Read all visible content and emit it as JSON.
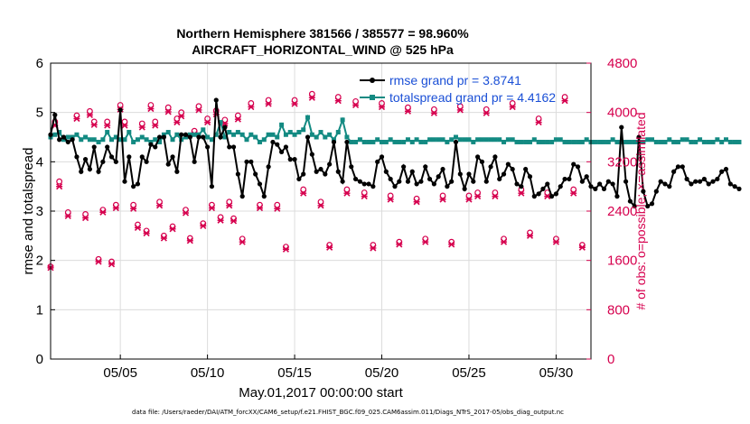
{
  "chart_data": {
    "type": "line",
    "title_line1": "Northern Hemisphere 381566 / 385577 = 98.960%",
    "title_line2": "AIRCRAFT_HORIZONTAL_WIND @ 525 hPa",
    "xlabel": "May.01,2017 00:00:00 start",
    "ylabel": "rmse and totalspread",
    "ylabel_right": "# of obs: o=possible; ×=assimilated",
    "footnote": "data file: /Users/raeder/DAI/ATM_forcXX/CAM6_setup/f.e21.FHIST_BGC.f09_025.CAM6assim.011/Diags_NTrS_2017-05/obs_diag_output.nc",
    "grid": true,
    "legend_position": "top-right",
    "xlim": [
      1,
      32
    ],
    "ylim": [
      0,
      6
    ],
    "ylim_right": [
      0,
      4800
    ],
    "x_ticks": [
      5,
      10,
      15,
      20,
      25,
      30
    ],
    "x_tick_labels": [
      "05/05",
      "05/10",
      "05/15",
      "05/20",
      "05/25",
      "05/30"
    ],
    "y_ticks": [
      0,
      1,
      2,
      3,
      4,
      5,
      6
    ],
    "y_tick_labels": [
      "0",
      "1",
      "2",
      "3",
      "4",
      "5",
      "6"
    ],
    "y_right_ticks": [
      0,
      800,
      1600,
      2400,
      3200,
      4000,
      4800
    ],
    "y_right_tick_labels": [
      "0",
      "800",
      "1600",
      "2400",
      "3200",
      "4000",
      "4800"
    ],
    "x_start": 1.0,
    "x_step": 0.25,
    "series": [
      {
        "name": "rmse grand pr = 3.8741",
        "color": "#000000",
        "values": [
          4.55,
          4.95,
          4.45,
          4.5,
          4.4,
          4.45,
          4.1,
          3.8,
          4.05,
          3.85,
          4.3,
          3.8,
          4.0,
          4.3,
          4.1,
          4.0,
          5.05,
          3.6,
          4.1,
          3.5,
          3.55,
          4.1,
          4.0,
          4.35,
          4.3,
          4.5,
          4.5,
          3.95,
          4.1,
          3.8,
          4.55,
          4.55,
          4.5,
          4.0,
          4.5,
          4.5,
          4.3,
          3.5,
          5.25,
          4.5,
          4.7,
          4.3,
          4.3,
          3.75,
          3.3,
          4.0,
          4.0,
          3.75,
          3.55,
          3.3,
          3.9,
          4.4,
          4.35,
          4.2,
          4.3,
          4.05,
          4.05,
          3.65,
          3.75,
          4.5,
          4.15,
          3.8,
          3.85,
          3.75,
          3.95,
          4.4,
          3.8,
          3.6,
          4.4,
          3.9,
          3.65,
          3.6,
          3.55,
          3.55,
          3.5,
          4.0,
          4.1,
          3.8,
          3.65,
          3.5,
          3.6,
          3.9,
          3.6,
          3.8,
          3.55,
          3.6,
          3.9,
          3.65,
          3.55,
          3.7,
          3.85,
          3.5,
          3.6,
          4.4,
          3.75,
          3.45,
          3.75,
          3.6,
          4.1,
          4.0,
          3.6,
          3.9,
          4.1,
          3.65,
          3.75,
          3.95,
          3.85,
          3.55,
          3.5,
          3.85,
          3.7,
          3.3,
          3.35,
          3.45,
          3.55,
          3.3,
          3.35,
          3.5,
          3.65,
          3.65,
          3.95,
          3.9,
          3.6,
          3.7,
          3.5,
          3.45,
          3.55,
          3.45,
          3.6,
          3.55,
          3.3,
          4.7,
          3.6,
          3.2,
          3.1,
          4.5,
          3.4,
          3.1,
          3.15,
          3.4,
          3.6,
          3.55,
          3.5,
          3.8,
          3.9,
          3.9,
          3.65,
          3.55,
          3.6,
          3.6,
          3.65,
          3.55,
          3.6,
          3.65,
          3.8,
          3.85,
          3.55,
          3.5,
          3.45
        ]
      },
      {
        "name": "totalspread grand pr = 4.4162",
        "color": "#138a82",
        "values": [
          4.5,
          4.55,
          4.6,
          4.45,
          4.5,
          4.5,
          4.55,
          4.45,
          4.5,
          4.45,
          4.45,
          4.4,
          4.45,
          4.6,
          4.45,
          4.5,
          4.45,
          4.45,
          4.6,
          4.4,
          4.45,
          4.5,
          4.45,
          4.4,
          4.45,
          4.4,
          4.55,
          4.6,
          4.45,
          4.55,
          4.45,
          4.5,
          4.55,
          4.55,
          4.55,
          4.65,
          4.5,
          4.45,
          4.55,
          4.8,
          4.5,
          4.6,
          4.55,
          4.6,
          4.55,
          4.45,
          4.55,
          4.5,
          4.4,
          4.45,
          4.55,
          4.55,
          4.5,
          4.75,
          4.55,
          4.6,
          4.55,
          4.6,
          4.65,
          4.9,
          4.55,
          4.5,
          4.6,
          4.5,
          4.55,
          4.45,
          4.6,
          4.85,
          4.5,
          4.4,
          4.4,
          4.45,
          4.4,
          4.4,
          4.4,
          4.45,
          4.4,
          4.4,
          4.45,
          4.4,
          4.4,
          4.4,
          4.45,
          4.4,
          4.45,
          4.4,
          4.4,
          4.45,
          4.45,
          4.45,
          4.45,
          4.4,
          4.45,
          4.5,
          4.45,
          4.45,
          4.45,
          4.4,
          4.45,
          4.45,
          4.45,
          4.45,
          4.45,
          4.45,
          4.4,
          4.45,
          4.45,
          4.4,
          4.4,
          4.4,
          4.4,
          4.45,
          4.4,
          4.4,
          4.4,
          4.4,
          4.45,
          4.45,
          4.4,
          4.4,
          4.4,
          4.4,
          4.4,
          4.45,
          4.4,
          4.4,
          4.4,
          4.4,
          4.4,
          4.45,
          4.4,
          4.4,
          4.4,
          4.4,
          4.4,
          4.4,
          4.4,
          4.45,
          4.45,
          4.4,
          4.4,
          4.4,
          4.45,
          4.4,
          4.4,
          4.45,
          4.45,
          4.4,
          4.4,
          4.45,
          4.4,
          4.4,
          4.4,
          4.45,
          4.4,
          4.45,
          4.4,
          4.4,
          4.4
        ]
      }
    ],
    "obs_series": {
      "color": "#d6004e",
      "possible_marker": "o",
      "assimilated_marker": "×",
      "x": [
        1.0,
        1.25,
        1.5,
        2.0,
        2.5,
        3.0,
        3.25,
        3.5,
        3.75,
        4.0,
        4.25,
        4.5,
        4.75,
        5.0,
        5.25,
        5.75,
        6.0,
        6.25,
        6.5,
        6.75,
        7.0,
        7.25,
        7.5,
        7.75,
        8.0,
        8.25,
        8.5,
        8.75,
        9.0,
        9.25,
        9.5,
        9.75,
        10.0,
        10.25,
        10.5,
        10.75,
        11.0,
        11.25,
        11.5,
        11.75,
        12.0,
        12.5,
        13.0,
        13.5,
        14.0,
        14.5,
        15.0,
        15.5,
        16.0,
        16.5,
        17.0,
        17.5,
        18.0,
        18.5,
        19.0,
        19.5,
        20.0,
        20.5,
        21.0,
        21.5,
        22.0,
        22.5,
        23.0,
        23.5,
        24.0,
        24.5,
        25.0,
        25.5,
        26.0,
        26.5,
        27.0,
        27.5,
        28.0,
        28.5,
        29.0,
        29.5,
        30.0,
        30.5,
        31.0,
        31.5
      ],
      "possible": [
        1500,
        3850,
        2880,
        2380,
        3950,
        2350,
        4020,
        3850,
        1620,
        2420,
        3850,
        1580,
        2500,
        4120,
        3850,
        2500,
        2180,
        3820,
        2080,
        4120,
        3850,
        2550,
        2000,
        4080,
        2150,
        3900,
        4000,
        2420,
        1960,
        3700,
        4100,
        2200,
        3900,
        2500,
        4030,
        2300,
        3880,
        2550,
        2280,
        3950,
        1950,
        4150,
        2500,
        4200,
        2500,
        1820,
        4200,
        2750,
        4300,
        2550,
        1850,
        4250,
        2750,
        4180,
        2700,
        1850,
        4150,
        2650,
        1900,
        4080,
        2600,
        1950,
        4050,
        2650,
        1900,
        4100,
        2650,
        2700,
        4050,
        2700,
        1950,
        4150,
        2750,
        2050,
        3900,
        2700,
        1950,
        4250,
        2750,
        1850
      ],
      "assimilated": [
        1480,
        3790,
        2800,
        2320,
        3900,
        2290,
        3960,
        3800,
        1580,
        2380,
        3790,
        1540,
        2450,
        4050,
        3790,
        2440,
        2130,
        3760,
        2040,
        4060,
        3790,
        2490,
        1960,
        4010,
        2110,
        3840,
        3940,
        2370,
        1920,
        3650,
        4040,
        2160,
        3840,
        2450,
        3970,
        2250,
        3820,
        2490,
        2240,
        3890,
        1900,
        4090,
        2450,
        4140,
        2440,
        1780,
        4140,
        2690,
        4240,
        2490,
        1810,
        4190,
        2690,
        4120,
        2640,
        1800,
        4090,
        2590,
        1860,
        4020,
        2550,
        1900,
        3990,
        2590,
        1860,
        4040,
        2590,
        2640,
        3990,
        2640,
        1900,
        4090,
        2690,
        2000,
        3840,
        2640,
        1900,
        4190,
        2690,
        1810
      ]
    }
  }
}
